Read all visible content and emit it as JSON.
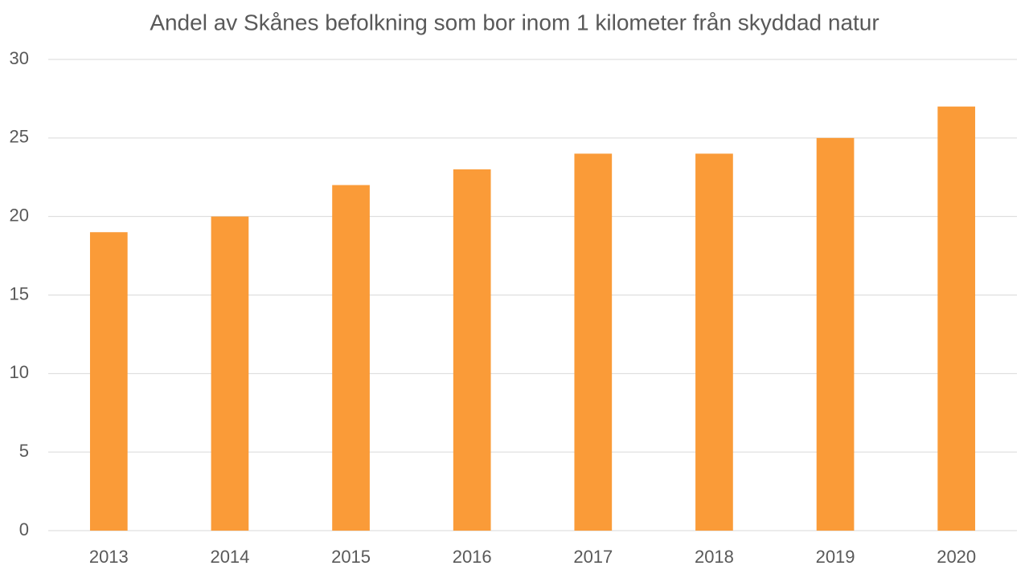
{
  "chart_data": {
    "type": "bar",
    "title": "Andel av Skånes befolkning som bor inom 1 kilometer från skyddad natur",
    "categories": [
      "2013",
      "2014",
      "2015",
      "2016",
      "2017",
      "2018",
      "2019",
      "2020"
    ],
    "values": [
      19,
      20,
      22,
      23,
      24,
      24,
      25,
      27
    ],
    "color": "#fa9b38",
    "ylim": [
      0,
      30
    ],
    "yticks": [
      0,
      5,
      10,
      15,
      20,
      25,
      30
    ],
    "grid": true
  }
}
